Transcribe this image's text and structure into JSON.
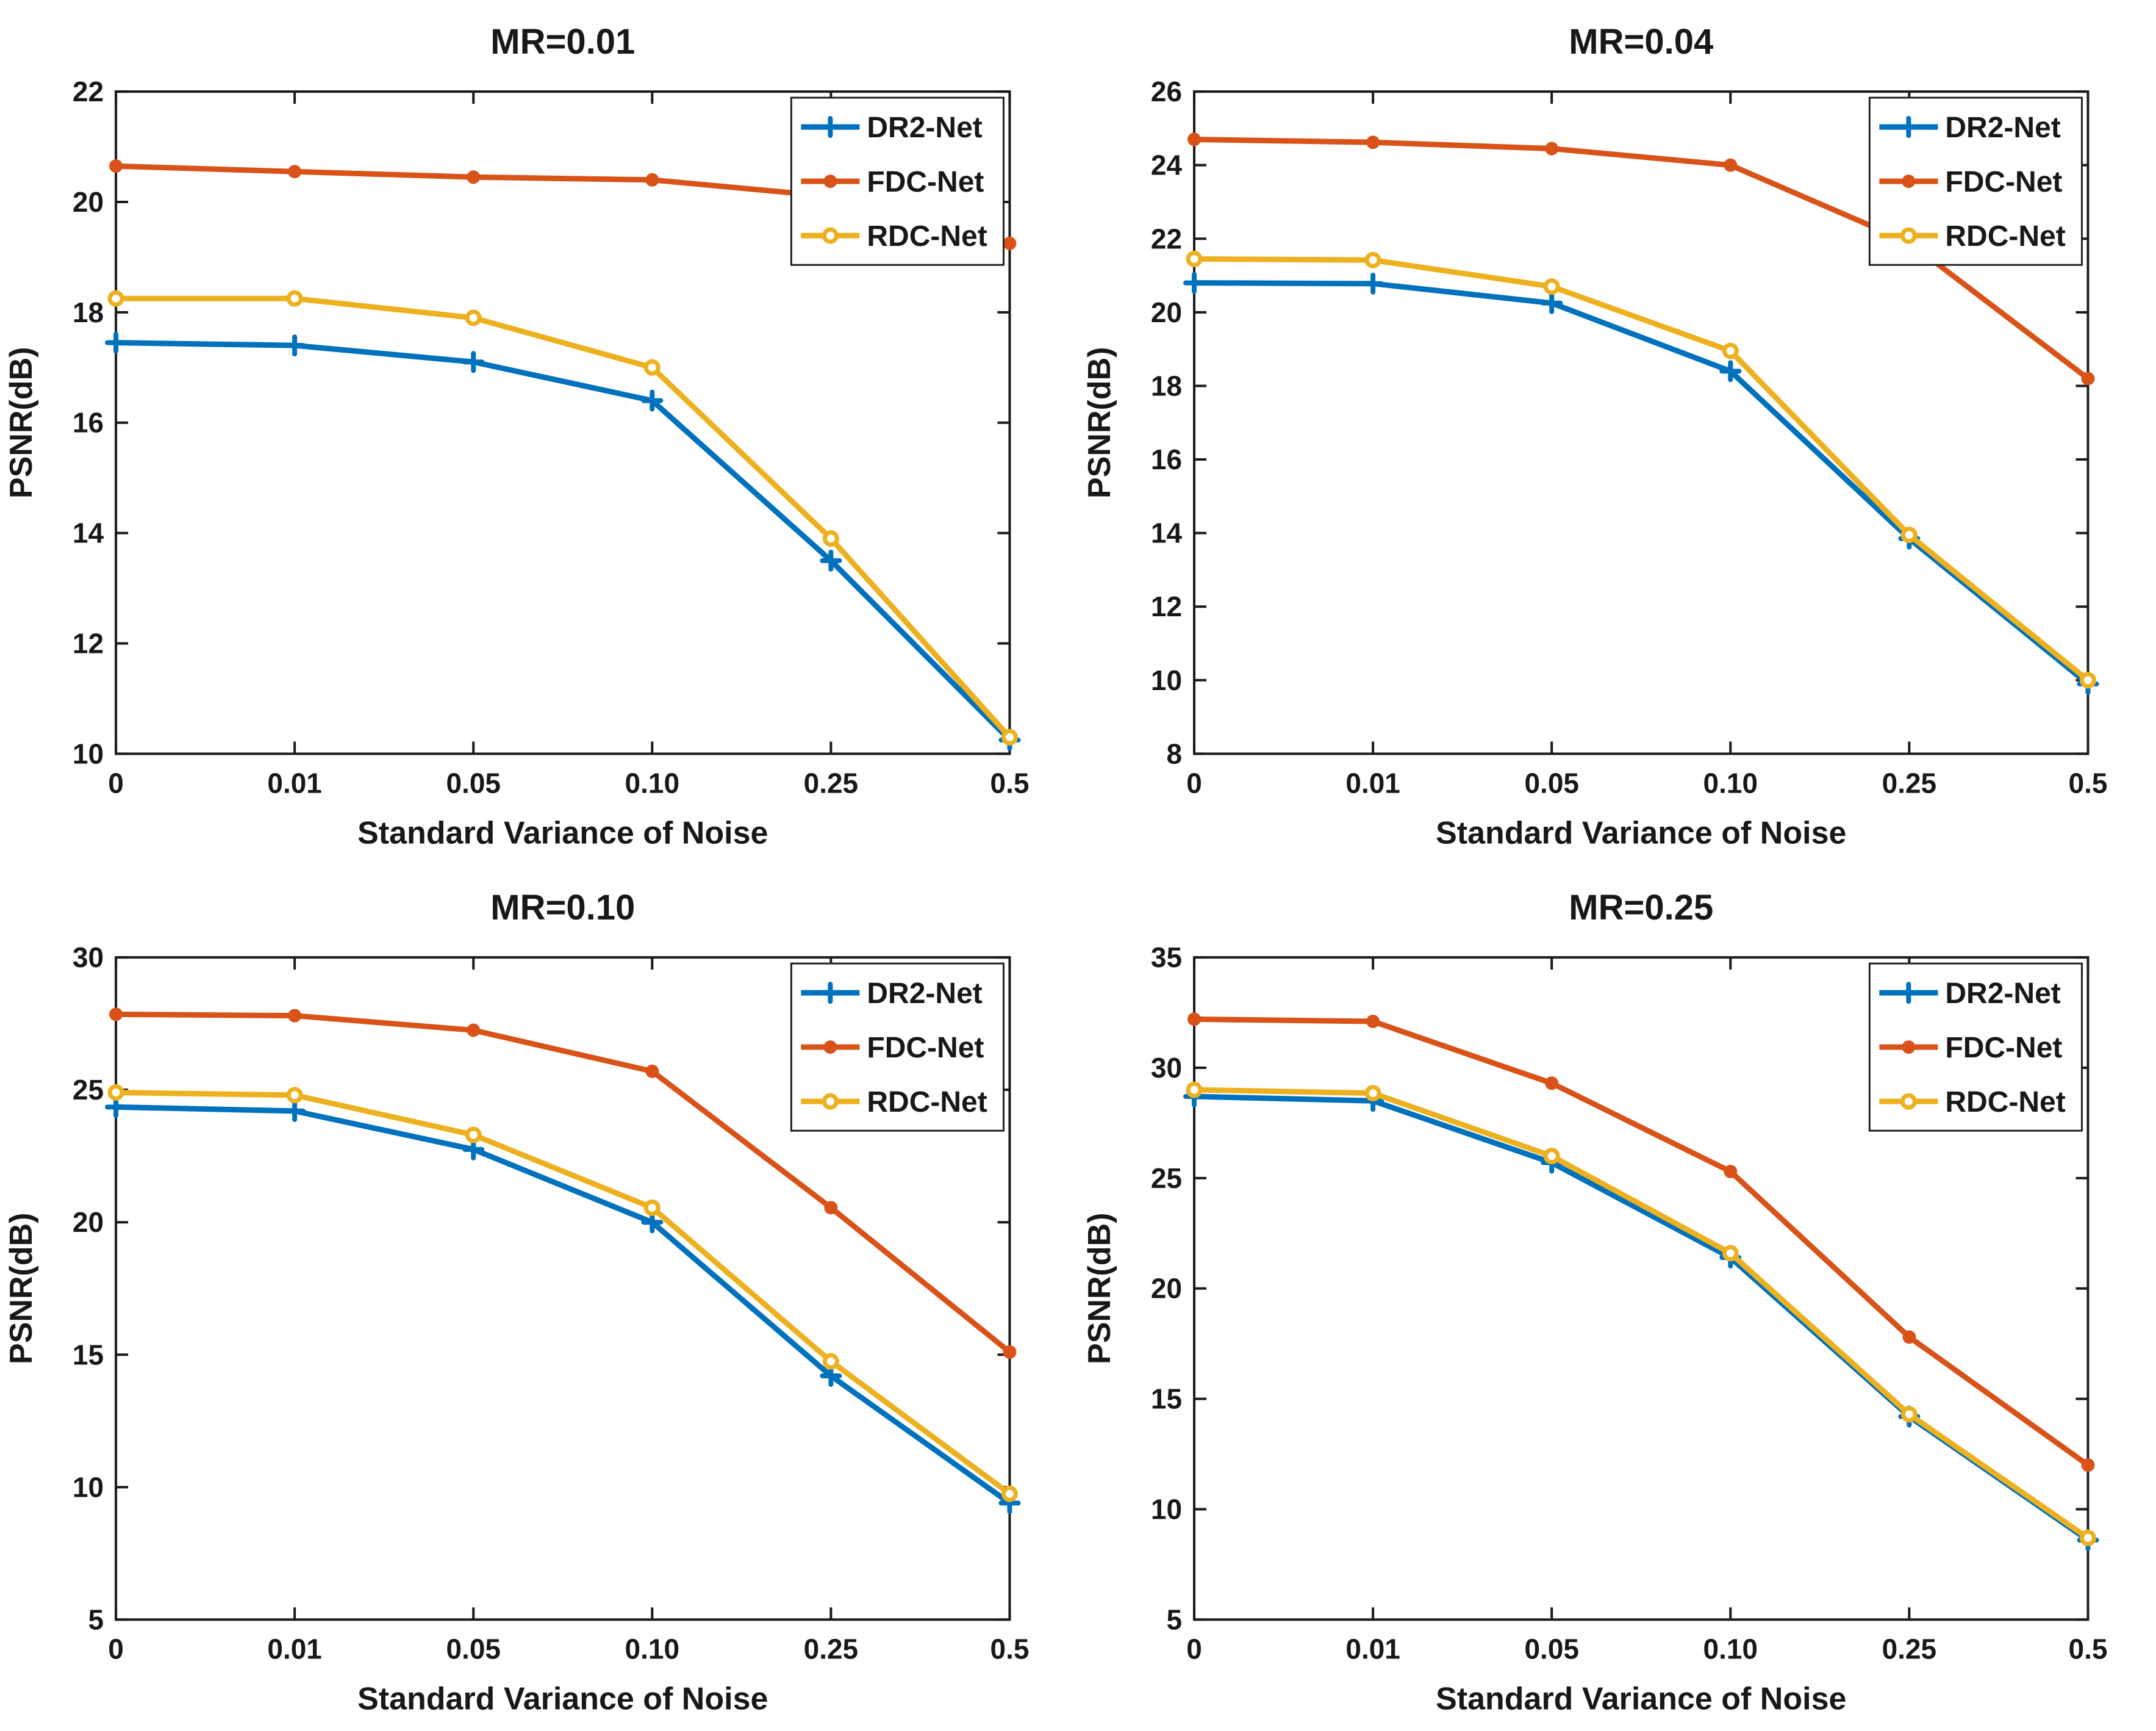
{
  "figure": {
    "background": "#ffffff",
    "axis_color": "#1a1a1a",
    "series_colors": {
      "DR2-Net": "#0072BD",
      "FDC-Net": "#D95319",
      "RDC-Net": "#EDB120"
    },
    "legend_entries": [
      "DR2-Net",
      "FDC-Net",
      "RDC-Net"
    ],
    "xlabel": "Standard Variance of Noise",
    "ylabel": "PSNR(dB)"
  },
  "chart_data": [
    {
      "type": "line",
      "title": "MR=0.01",
      "xlabel": "Standard Variance of Noise",
      "ylabel": "PSNR(dB)",
      "categories": [
        "0",
        "0.01",
        "0.05",
        "0.10",
        "0.25",
        "0.5"
      ],
      "ylim": [
        10,
        22
      ],
      "yticks": [
        10,
        12,
        14,
        16,
        18,
        20,
        22
      ],
      "grid": false,
      "legend_position": "top-right",
      "series": [
        {
          "name": "DR2-Net",
          "color": "#0072BD",
          "marker": "plus",
          "values": [
            17.45,
            17.4,
            17.1,
            16.4,
            13.5,
            10.25
          ]
        },
        {
          "name": "FDC-Net",
          "color": "#D95319",
          "marker": "filled-circle",
          "values": [
            20.65,
            20.55,
            20.45,
            20.4,
            20.1,
            19.25
          ]
        },
        {
          "name": "RDC-Net",
          "color": "#EDB120",
          "marker": "open-circle",
          "values": [
            18.25,
            18.25,
            17.9,
            17.0,
            13.9,
            10.3
          ]
        }
      ]
    },
    {
      "type": "line",
      "title": "MR=0.04",
      "xlabel": "Standard Variance of Noise",
      "ylabel": "PSNR(dB)",
      "categories": [
        "0",
        "0.01",
        "0.05",
        "0.10",
        "0.25",
        "0.5"
      ],
      "ylim": [
        8,
        26
      ],
      "yticks": [
        8,
        10,
        12,
        14,
        16,
        18,
        20,
        22,
        24,
        26
      ],
      "grid": false,
      "legend_position": "top-right",
      "series": [
        {
          "name": "DR2-Net",
          "color": "#0072BD",
          "marker": "plus",
          "values": [
            20.8,
            20.78,
            20.25,
            18.4,
            13.85,
            9.9
          ]
        },
        {
          "name": "FDC-Net",
          "color": "#D95319",
          "marker": "filled-circle",
          "values": [
            24.7,
            24.62,
            24.45,
            24.0,
            21.9,
            18.2
          ]
        },
        {
          "name": "RDC-Net",
          "color": "#EDB120",
          "marker": "open-circle",
          "values": [
            21.45,
            21.42,
            20.7,
            18.95,
            13.95,
            10.0
          ]
        }
      ]
    },
    {
      "type": "line",
      "title": "MR=0.10",
      "xlabel": "Standard Variance of Noise",
      "ylabel": "PSNR(dB)",
      "categories": [
        "0",
        "0.01",
        "0.05",
        "0.10",
        "0.25",
        "0.5"
      ],
      "ylim": [
        5,
        30
      ],
      "yticks": [
        5,
        10,
        15,
        20,
        25,
        30
      ],
      "grid": false,
      "legend_position": "top-right",
      "series": [
        {
          "name": "DR2-Net",
          "color": "#0072BD",
          "marker": "plus",
          "values": [
            24.35,
            24.2,
            22.75,
            20.0,
            14.2,
            9.4
          ]
        },
        {
          "name": "FDC-Net",
          "color": "#D95319",
          "marker": "filled-circle",
          "values": [
            27.85,
            27.8,
            27.25,
            25.7,
            20.55,
            15.1
          ]
        },
        {
          "name": "RDC-Net",
          "color": "#EDB120",
          "marker": "open-circle",
          "values": [
            24.9,
            24.8,
            23.3,
            20.55,
            14.75,
            9.75
          ]
        }
      ]
    },
    {
      "type": "line",
      "title": "MR=0.25",
      "xlabel": "Standard Variance of Noise",
      "ylabel": "PSNR(dB)",
      "categories": [
        "0",
        "0.01",
        "0.05",
        "0.10",
        "0.25",
        "0.5"
      ],
      "ylim": [
        5,
        35
      ],
      "yticks": [
        5,
        10,
        15,
        20,
        25,
        30,
        35
      ],
      "grid": false,
      "legend_position": "top-right",
      "series": [
        {
          "name": "DR2-Net",
          "color": "#0072BD",
          "marker": "plus",
          "values": [
            28.7,
            28.5,
            25.7,
            21.4,
            14.2,
            8.6
          ]
        },
        {
          "name": "FDC-Net",
          "color": "#D95319",
          "marker": "filled-circle",
          "values": [
            32.2,
            32.1,
            29.3,
            25.3,
            17.8,
            12.0
          ]
        },
        {
          "name": "RDC-Net",
          "color": "#EDB120",
          "marker": "open-circle",
          "values": [
            29.0,
            28.85,
            26.0,
            21.6,
            14.3,
            8.7
          ]
        }
      ]
    }
  ]
}
